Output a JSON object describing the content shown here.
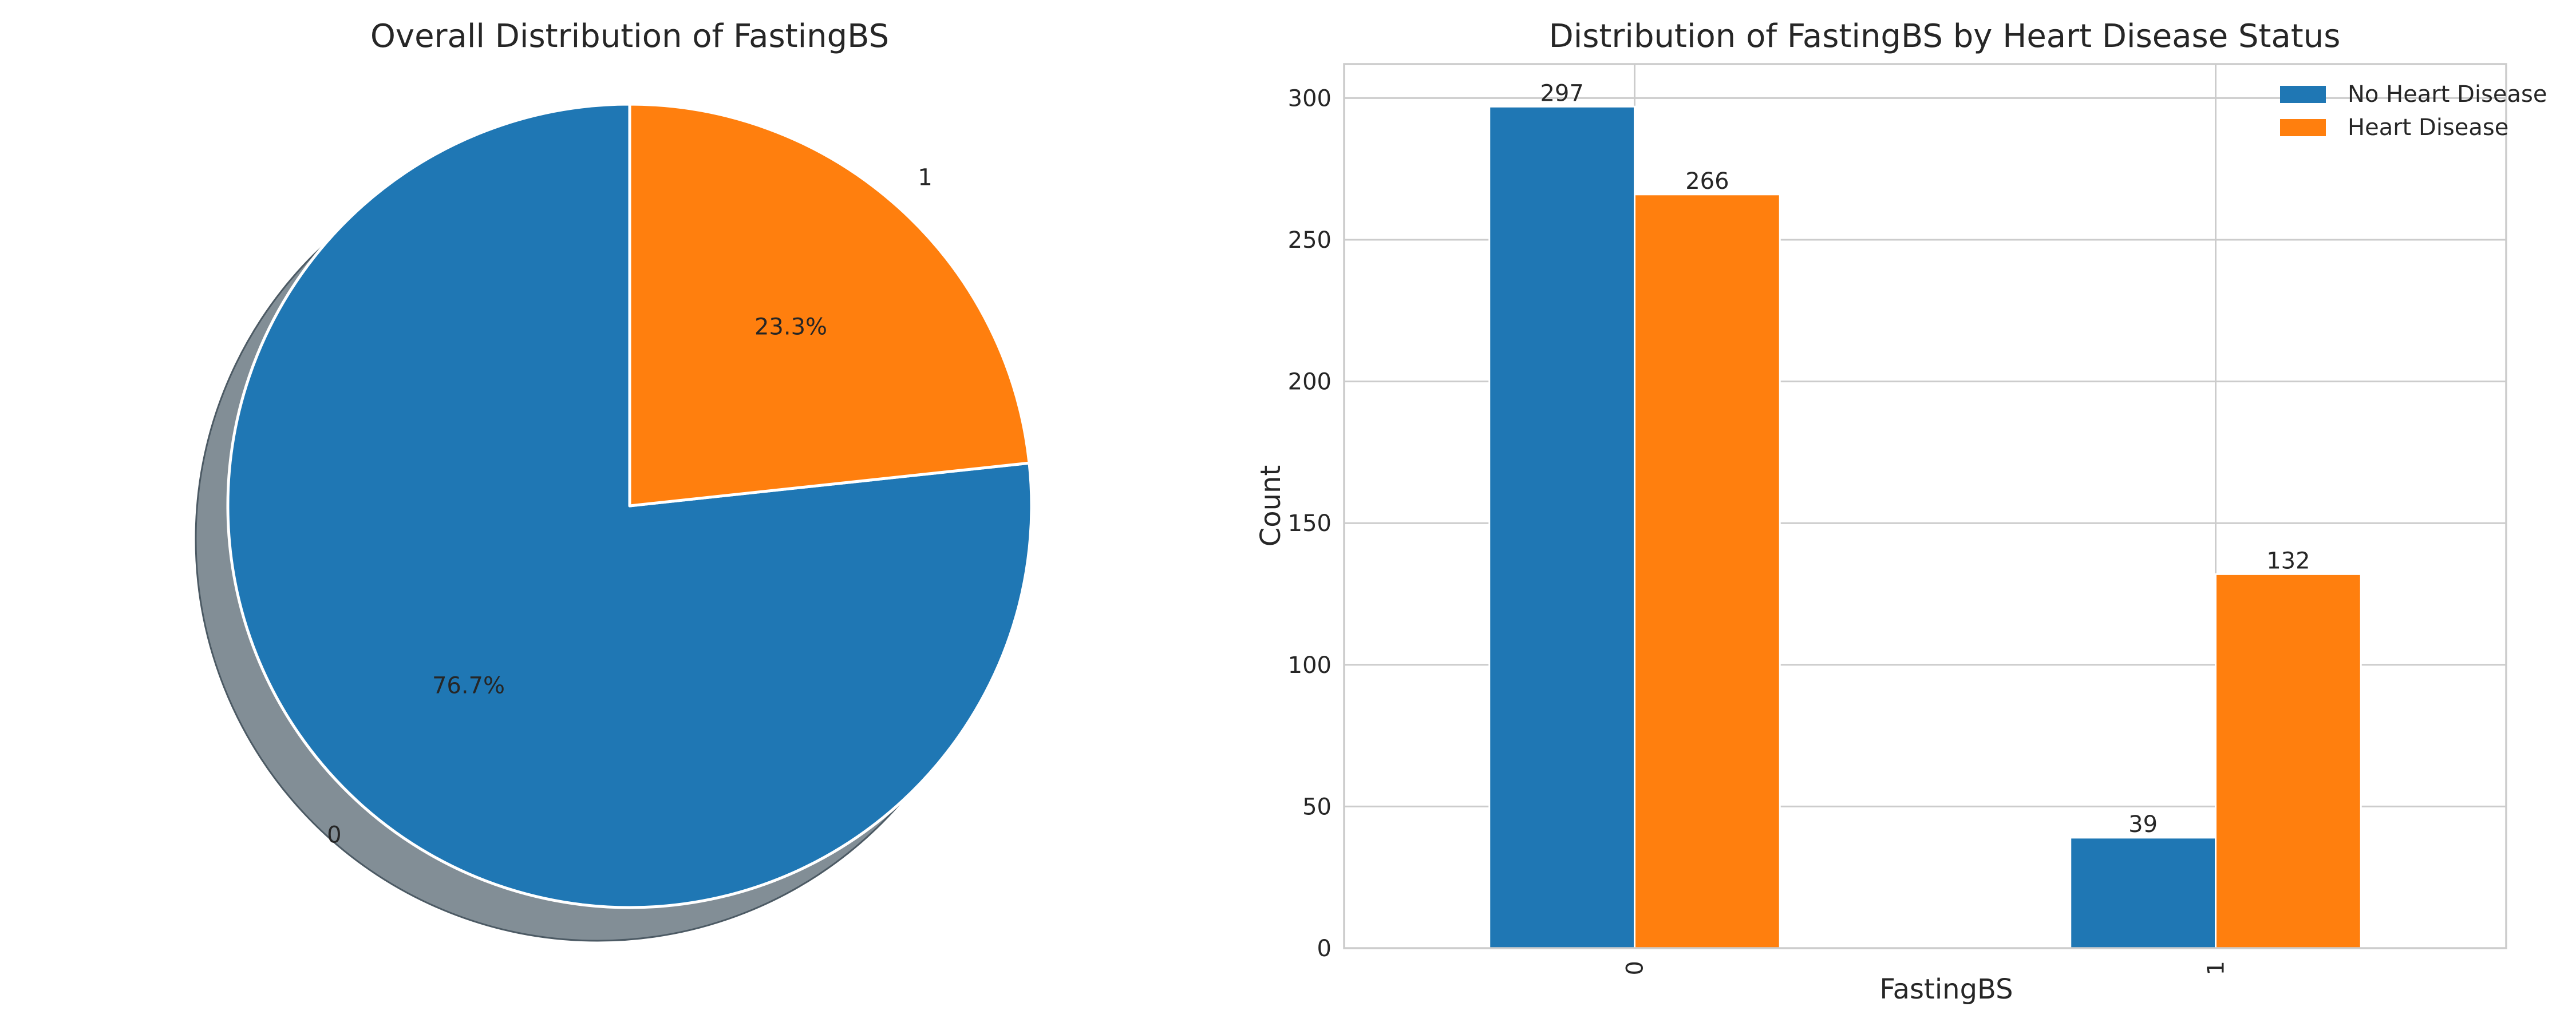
{
  "chart_data": [
    {
      "type": "pie",
      "title": "Overall Distribution of FastingBS",
      "labels": [
        "0",
        "1"
      ],
      "values": [
        76.7,
        23.3
      ],
      "value_labels": [
        "76.7%",
        "23.3%"
      ],
      "colors": [
        "#1f77b4",
        "#ff7f0e"
      ],
      "start_angle": 90,
      "shadow": true
    },
    {
      "type": "bar",
      "title": "Distribution of FastingBS by Heart Disease Status",
      "xlabel": "FastingBS",
      "ylabel": "Count",
      "categories": [
        "0",
        "1"
      ],
      "series": [
        {
          "name": "No Heart Disease",
          "values": [
            297,
            39
          ],
          "color": "#1f77b4"
        },
        {
          "name": "Heart Disease",
          "values": [
            266,
            132
          ],
          "color": "#ff7f0e"
        }
      ],
      "value_labels": [
        [
          "297",
          "39"
        ],
        [
          "266",
          "132"
        ]
      ],
      "ylim": [
        0,
        312
      ],
      "yticks": [
        0,
        50,
        100,
        150,
        200,
        250,
        300
      ],
      "ytick_labels": [
        "0",
        "50",
        "100",
        "150",
        "200",
        "250",
        "300"
      ],
      "grid": true,
      "legend": "top-right"
    }
  ]
}
